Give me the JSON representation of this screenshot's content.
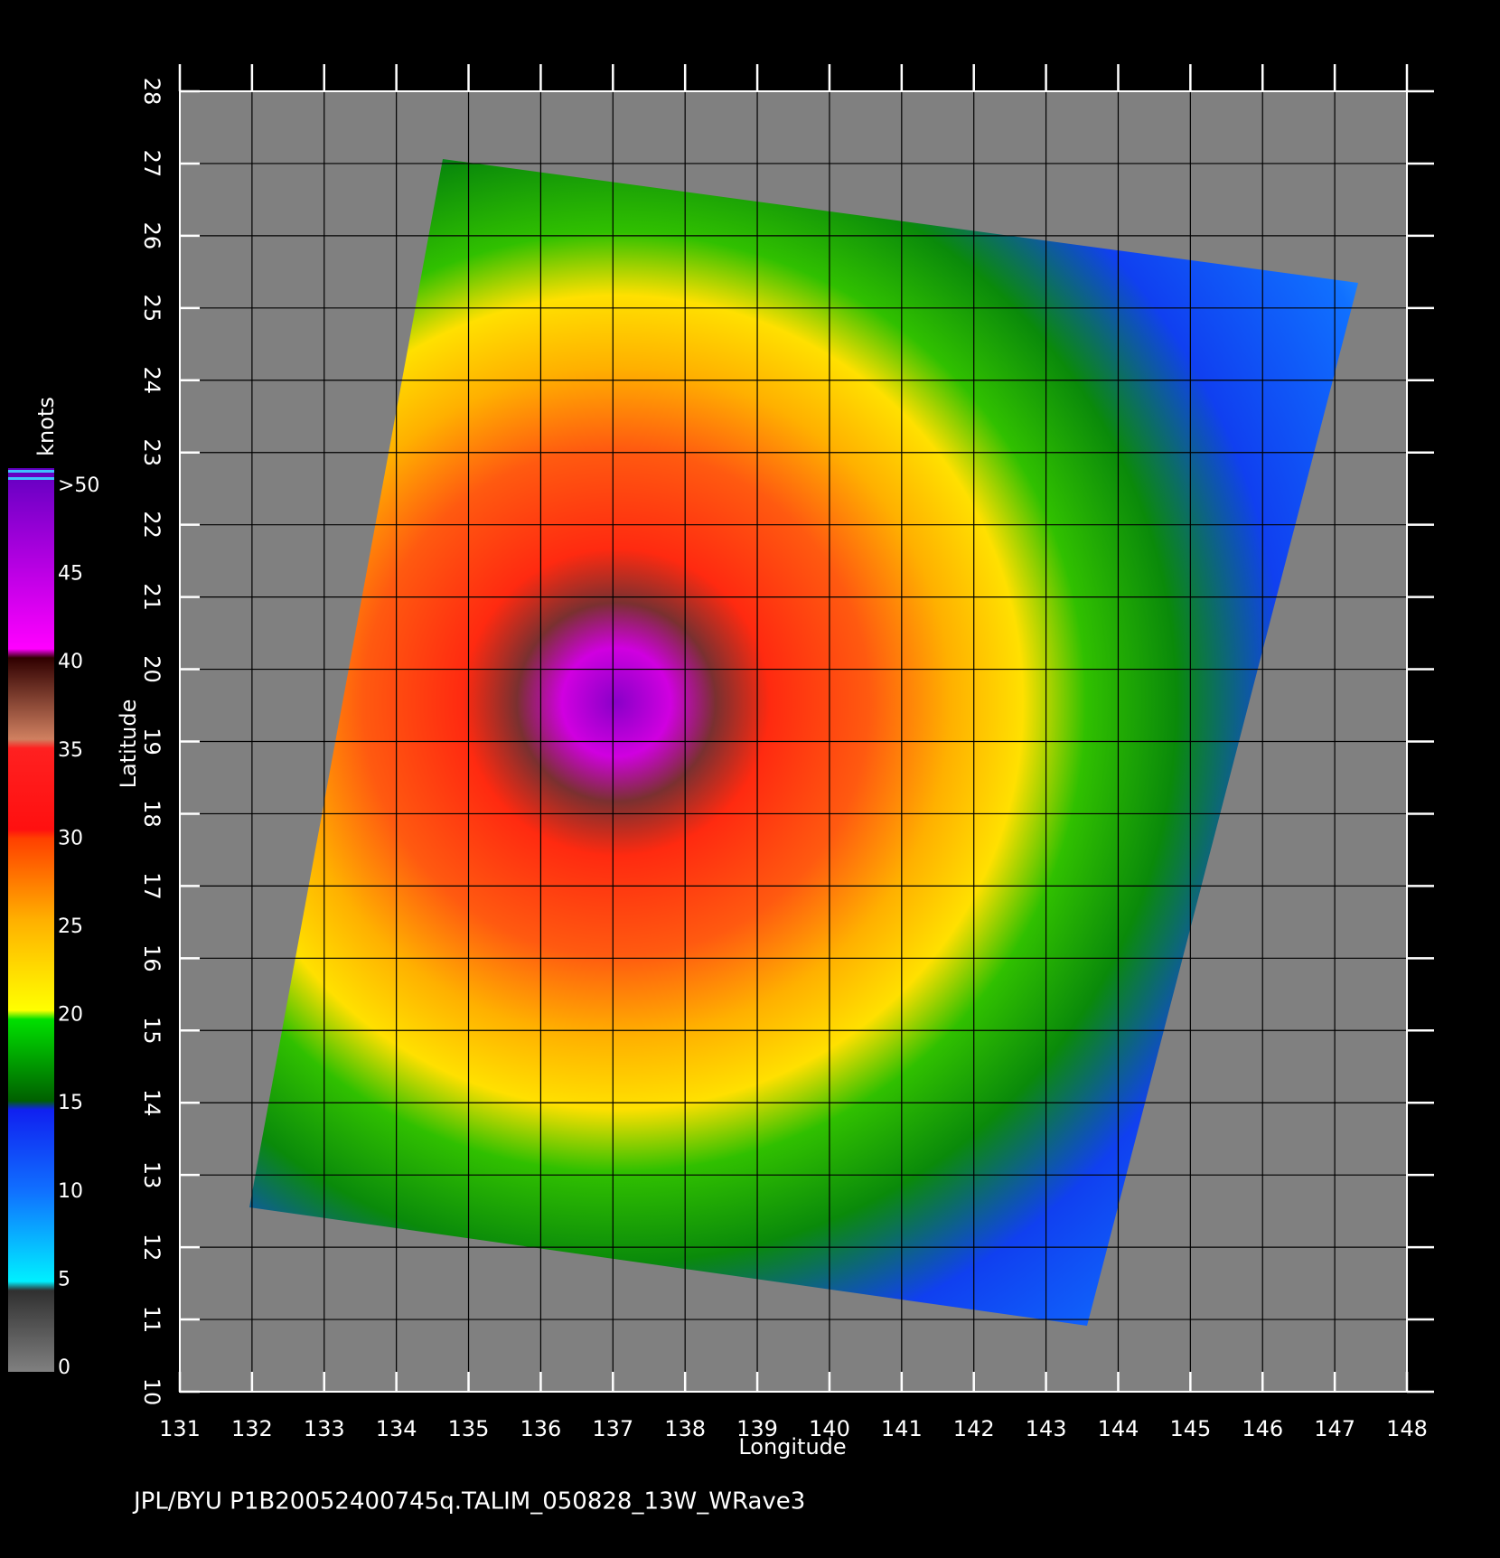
{
  "map": {
    "xlabel": "Longitude",
    "ylabel": "Latitude",
    "xlim": [
      131,
      148
    ],
    "ylim": [
      10,
      28
    ],
    "xticks": [
      131,
      132,
      133,
      134,
      135,
      136,
      137,
      138,
      139,
      140,
      141,
      142,
      143,
      144,
      145,
      146,
      147,
      148
    ],
    "yticks": [
      10,
      11,
      12,
      13,
      14,
      15,
      16,
      17,
      18,
      19,
      20,
      21,
      22,
      23,
      24,
      25,
      26,
      27,
      28
    ],
    "grid": true
  },
  "colorbar": {
    "title": "knots",
    "ticks": [
      0,
      5,
      10,
      15,
      20,
      25,
      30,
      35,
      40,
      45,
      {
        "value": 50,
        "label": ">50"
      }
    ]
  },
  "footer": "JPL/BYU  P1B20052400745q.TALIM_050828_13W_WRave3"
}
